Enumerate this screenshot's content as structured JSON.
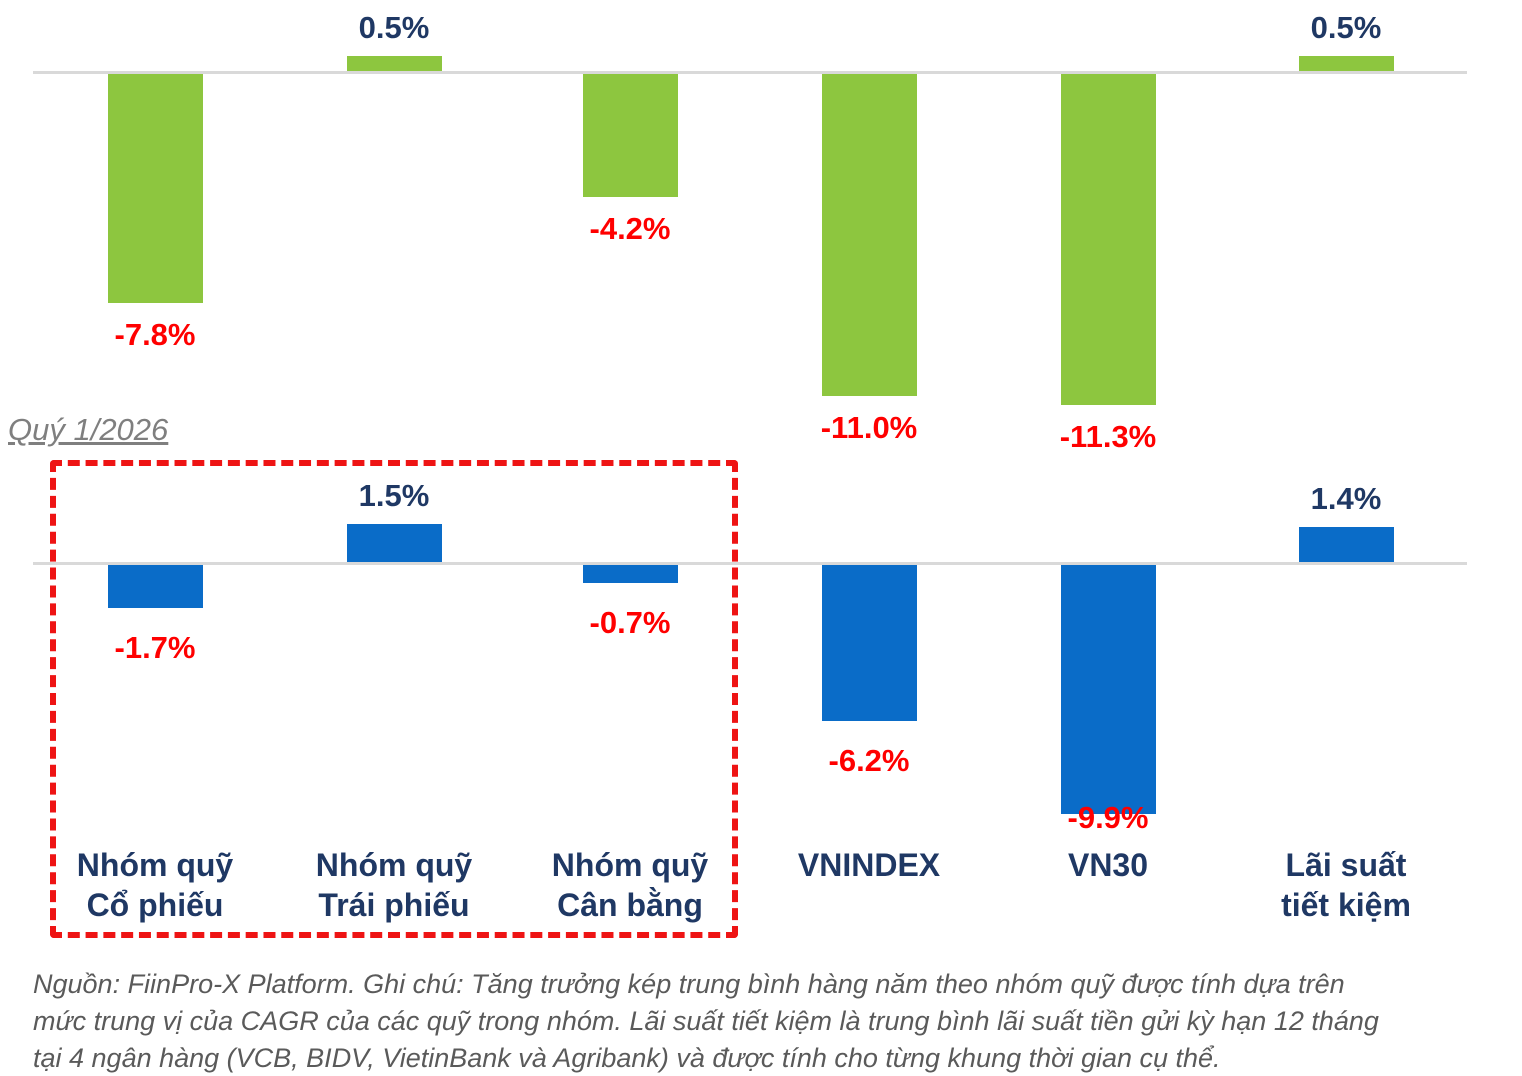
{
  "period_label": {
    "text": "Quý 1/2026",
    "color": "#7F7F7F"
  },
  "colors": {
    "green_bar": "#8DC63F",
    "blue_bar": "#0A6CC8",
    "axis_line": "#D9D9D9",
    "positive_label": "#1F3864",
    "negative_label": "#FF0000",
    "category_label": "#1F3864",
    "highlight_box": "#EE1414",
    "footnote_text": "#5A5A5A"
  },
  "categories": [
    {
      "lines": [
        "Nhóm quỹ",
        "Cổ phiếu"
      ]
    },
    {
      "lines": [
        "Nhóm quỹ",
        "Trái phiếu"
      ]
    },
    {
      "lines": [
        "Nhóm quỹ",
        "Cân bằng"
      ]
    },
    {
      "lines": [
        "VNINDEX"
      ]
    },
    {
      "lines": [
        "VN30"
      ]
    },
    {
      "lines": [
        "Lãi suất",
        "tiết kiệm"
      ]
    }
  ],
  "chart_data": [
    {
      "type": "bar",
      "name": "long-term-green-series",
      "categories": [
        "Nhóm quỹ Cổ phiếu",
        "Nhóm quỹ Trái phiếu",
        "Nhóm quỹ Cân bằng",
        "VNINDEX",
        "VN30",
        "Lãi suất tiết kiệm"
      ],
      "values": [
        -7.8,
        0.5,
        -4.2,
        -11.0,
        -11.3,
        0.5
      ],
      "labels": [
        "-7.8%",
        "0.5%",
        "-4.2%",
        "-11.0%",
        "-11.3%",
        "0.5%"
      ],
      "bar_color": "#8DC63F",
      "zero_line": true,
      "grid": false,
      "ylim": [
        -12,
        1.5
      ],
      "xlabel": "",
      "ylabel": ""
    },
    {
      "type": "bar",
      "name": "quy-1-2026-blue-series",
      "period": "Quý 1/2026",
      "categories": [
        "Nhóm quỹ Cổ phiếu",
        "Nhóm quỹ Trái phiếu",
        "Nhóm quỹ Cân bằng",
        "VNINDEX",
        "VN30",
        "Lãi suất tiết kiệm"
      ],
      "values": [
        -1.7,
        1.5,
        -0.7,
        -6.2,
        -9.9,
        1.4
      ],
      "labels": [
        "-1.7%",
        "1.5%",
        "-0.7%",
        "-6.2%",
        "-9.9%",
        "1.4%"
      ],
      "bar_color": "#0A6CC8",
      "zero_line": true,
      "grid": false,
      "ylim": [
        -10.5,
        2
      ],
      "xlabel": "",
      "ylabel": ""
    }
  ],
  "highlight_box": {
    "covers": [
      "Nhóm quỹ Cổ phiếu",
      "Nhóm quỹ Trái phiếu",
      "Nhóm quỹ Cân bằng"
    ]
  },
  "footnote": {
    "lines": [
      "Nguồn: FiinPro-X Platform. Ghi chú: Tăng trưởng kép trung bình hàng năm theo nhóm quỹ được tính dựa trên",
      "mức trung vị của CAGR của các quỹ trong nhóm. Lãi suất tiết kiệm là trung bình lãi suất tiền gửi kỳ hạn 12 tháng",
      "tại 4 ngân hàng (VCB, BIDV, VietinBank và Agribank) và được tính cho từng khung thời gian cụ thể."
    ]
  }
}
